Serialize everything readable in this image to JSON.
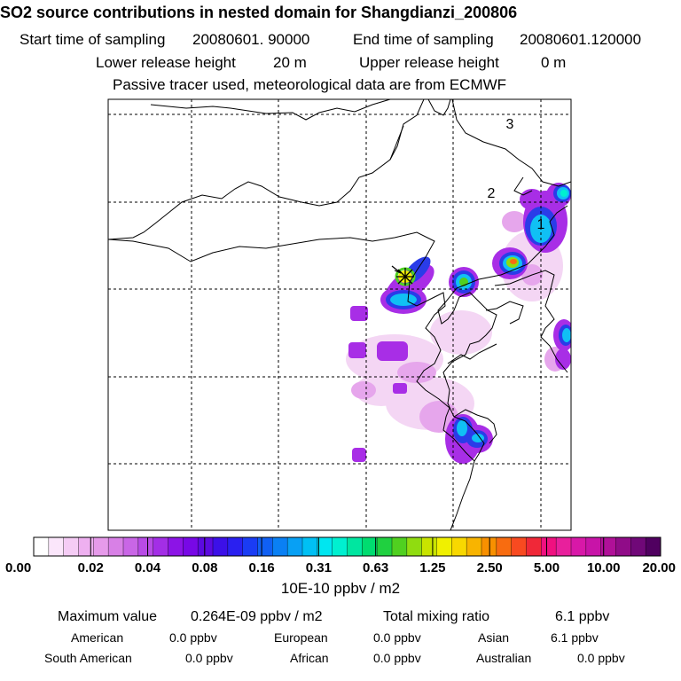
{
  "header": {
    "title": "SO2 source contributions in nested domain for Shangdianzi_200806",
    "start_label": "Start time of sampling",
    "start_value": "20080601. 90000",
    "end_label": "End time of sampling",
    "end_value": "20080601.120000",
    "lower_label": "Lower release height",
    "lower_value": "20 m",
    "upper_label": "Upper release height",
    "upper_value": "0 m",
    "note": "Passive tracer used, meteorological data are from ECMWF"
  },
  "map": {
    "marker_labels": [
      "1",
      "2",
      "3"
    ],
    "source_marker": "Shangdianzi station star"
  },
  "colorbar": {
    "tick_labels": [
      "0.00",
      "0.02",
      "0.04",
      "0.08",
      "0.16",
      "0.31",
      "0.63",
      "1.25",
      "2.50",
      "5.00",
      "10.00",
      "20.00"
    ],
    "unit": "10E-10 ppbv / m2",
    "colors": [
      "#ffffff",
      "#fbe6fb",
      "#f5ccf5",
      "#eeb0f0",
      "#e69aea",
      "#d880e6",
      "#c966e6",
      "#b84be6",
      "#a32ee6",
      "#8c14e6",
      "#7808e6",
      "#5c0ae0",
      "#3c10e8",
      "#2a20f0",
      "#1a3cf4",
      "#1060f4",
      "#0a80f4",
      "#08a0f4",
      "#00c0f4",
      "#00e6f0",
      "#00f0d0",
      "#00e6a0",
      "#00dc70",
      "#20d040",
      "#50d020",
      "#90dc10",
      "#c8e400",
      "#f0f000",
      "#f8d800",
      "#f8b400",
      "#f89000",
      "#f86c10",
      "#f84a20",
      "#f02838",
      "#f01080",
      "#e8209c",
      "#d818a8",
      "#c814a8",
      "#b01098",
      "#900c88",
      "#700878",
      "#500060"
    ]
  },
  "summary": {
    "max_label": "Maximum value",
    "max_value": "0.264E-09 ppbv / m2",
    "total_label": "Total mixing ratio",
    "total_value": "6.1 ppbv",
    "regions": [
      {
        "name": "American",
        "value": "0.0 ppbv"
      },
      {
        "name": "European",
        "value": "0.0 ppbv"
      },
      {
        "name": "Asian",
        "value": "6.1 ppbv"
      },
      {
        "name": "South American",
        "value": "0.0 ppbv"
      },
      {
        "name": "African",
        "value": "0.0 ppbv"
      },
      {
        "name": "Australian",
        "value": "0.0 ppbv"
      }
    ]
  }
}
